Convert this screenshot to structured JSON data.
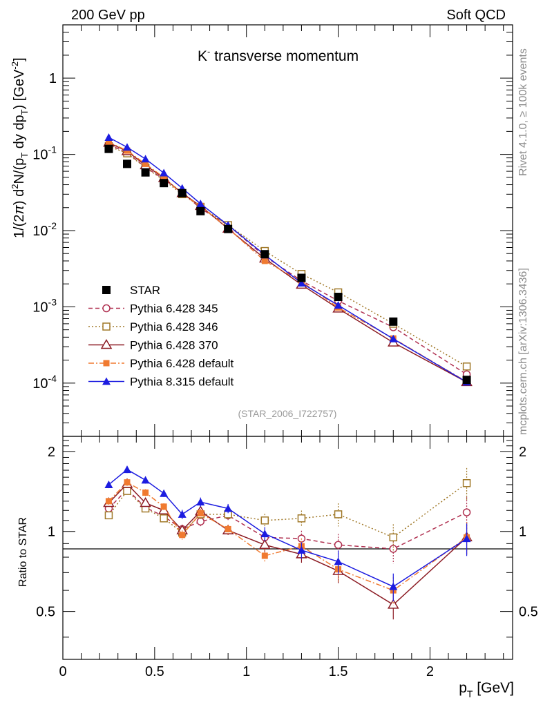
{
  "header": {
    "left_label": "200 GeV pp",
    "right_label": "Soft QCD",
    "side_label_top": "Rivet 4.1.0, ≥ 100k events",
    "side_label_bottom": "mcplots.cern.ch [arXiv:1306.3436]"
  },
  "chart_data": [
    {
      "type": "line",
      "title_main": "K",
      "title_sup": "-",
      "title_rest": " transverse momentum",
      "ylabel": "1/(2π)  d²N/(p_T dy dp_T) [GeV⁻²]",
      "yscale": "log",
      "ylim": [
        2e-05,
        5
      ],
      "xlim": [
        0,
        2.45
      ],
      "yticks": [
        "10^-4",
        "10^-3",
        "10^-2",
        "10^-1",
        "1"
      ],
      "watermark": "(STAR_2006_I722757)",
      "legend_position": "bottom-left",
      "x": [
        0.25,
        0.35,
        0.45,
        0.55,
        0.65,
        0.75,
        0.9,
        1.1,
        1.3,
        1.5,
        1.8,
        2.2
      ],
      "series": [
        {
          "name": "STAR",
          "color": "#000000",
          "marker": "square-filled",
          "line": "none",
          "values": [
            0.118,
            0.075,
            0.058,
            0.042,
            0.031,
            0.018,
            0.0105,
            0.0049,
            0.0024,
            0.00135,
            0.00064,
            0.00011
          ]
        },
        {
          "name": "Pythia 6.428 345",
          "color": "#b03050",
          "marker": "circle-open",
          "line": "dashed",
          "values": [
            0.135,
            0.105,
            0.068,
            0.047,
            0.032,
            0.0195,
            0.0118,
            0.0046,
            0.0022,
            0.0012,
            0.00054,
            0.00013
          ]
        },
        {
          "name": "Pythia 6.428 346",
          "color": "#a07828",
          "marker": "square-open",
          "line": "dotted",
          "values": [
            0.128,
            0.103,
            0.067,
            0.046,
            0.03,
            0.0205,
            0.0118,
            0.0054,
            0.0027,
            0.00155,
            0.0006,
            0.000165
          ]
        },
        {
          "name": "Pythia 6.428 370",
          "color": "#8c1c24",
          "marker": "triangle-open",
          "line": "solid",
          "values": [
            0.142,
            0.11,
            0.072,
            0.049,
            0.031,
            0.021,
            0.0106,
            0.0043,
            0.00195,
            0.00095,
            0.00034,
            0.000103
          ]
        },
        {
          "name": "Pythia 6.428 default",
          "color": "#f07a30",
          "marker": "square-filled-small",
          "line": "dashdot",
          "values": [
            0.145,
            0.112,
            0.075,
            0.05,
            0.03,
            0.021,
            0.0107,
            0.004,
            0.00215,
            0.00098,
            0.000385,
            0.000104
          ]
        },
        {
          "name": "Pythia 8.315 default",
          "color": "#1c1ce0",
          "marker": "triangle-filled",
          "line": "solid",
          "values": [
            0.167,
            0.124,
            0.087,
            0.057,
            0.036,
            0.0225,
            0.0118,
            0.0048,
            0.00205,
            0.00105,
            0.00038,
            0.000103
          ]
        }
      ]
    },
    {
      "type": "line",
      "ylabel": "Ratio to STAR",
      "xlabel": "p_T [GeV]",
      "xlim": [
        0,
        2.45
      ],
      "ylim": [
        0.33,
        2.28
      ],
      "yticks": [
        "0.5",
        "1",
        "2"
      ],
      "xticks": [
        "0",
        "0.5",
        "1",
        "1.5",
        "2"
      ],
      "x": [
        0.25,
        0.35,
        0.45,
        0.55,
        0.65,
        0.75,
        0.9,
        1.1,
        1.3,
        1.5,
        1.8,
        2.2
      ],
      "series": [
        {
          "name": "Pythia 6.428 345",
          "color": "#b03050",
          "marker": "circle-open",
          "line": "dashed",
          "values": [
            1.22,
            1.44,
            1.23,
            1.14,
            1.02,
            1.09,
            1.15,
            0.95,
            0.94,
            0.89,
            0.86,
            1.18
          ]
        },
        {
          "name": "Pythia 6.428 346",
          "color": "#a07828",
          "marker": "square-open",
          "line": "dotted",
          "values": [
            1.15,
            1.42,
            1.22,
            1.12,
            0.99,
            1.16,
            1.16,
            1.1,
            1.12,
            1.16,
            0.95,
            1.52
          ]
        },
        {
          "name": "Pythia 6.428 370",
          "color": "#8c1c24",
          "marker": "triangle-open",
          "line": "solid",
          "values": [
            1.28,
            1.51,
            1.28,
            1.2,
            1.01,
            1.19,
            1.01,
            0.89,
            0.82,
            0.71,
            0.53,
            0.95
          ]
        },
        {
          "name": "Pythia 6.428 default",
          "color": "#f07a30",
          "marker": "square-filled-small",
          "line": "dashdot",
          "values": [
            1.3,
            1.53,
            1.4,
            1.24,
            0.97,
            1.17,
            1.02,
            0.81,
            0.88,
            0.72,
            0.6,
            0.95
          ]
        },
        {
          "name": "Pythia 8.315 default",
          "color": "#1c1ce0",
          "marker": "triangle-filled",
          "line": "solid",
          "values": [
            1.5,
            1.71,
            1.56,
            1.39,
            1.16,
            1.29,
            1.22,
            0.98,
            0.85,
            0.77,
            0.62,
            0.94
          ]
        }
      ]
    }
  ]
}
